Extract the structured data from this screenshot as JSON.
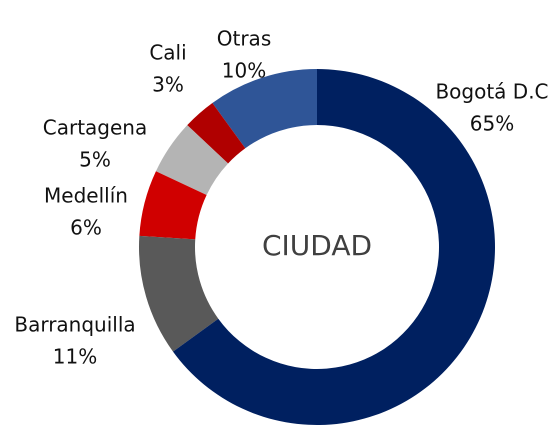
{
  "chart_data": {
    "type": "donut",
    "center_label": "CIUDAD",
    "categories": [
      "Bogotá D.C",
      "Barranquilla",
      "Medellín",
      "Cartagena",
      "Cali",
      "Otras"
    ],
    "values": [
      65,
      11,
      6,
      5,
      3,
      10
    ],
    "value_labels": [
      "65%",
      "11%",
      "6%",
      "5%",
      "3%",
      "10%"
    ],
    "colors": [
      "#002060",
      "#595959",
      "#d00000",
      "#b4b4b4",
      "#b00000",
      "#2f5597"
    ]
  }
}
